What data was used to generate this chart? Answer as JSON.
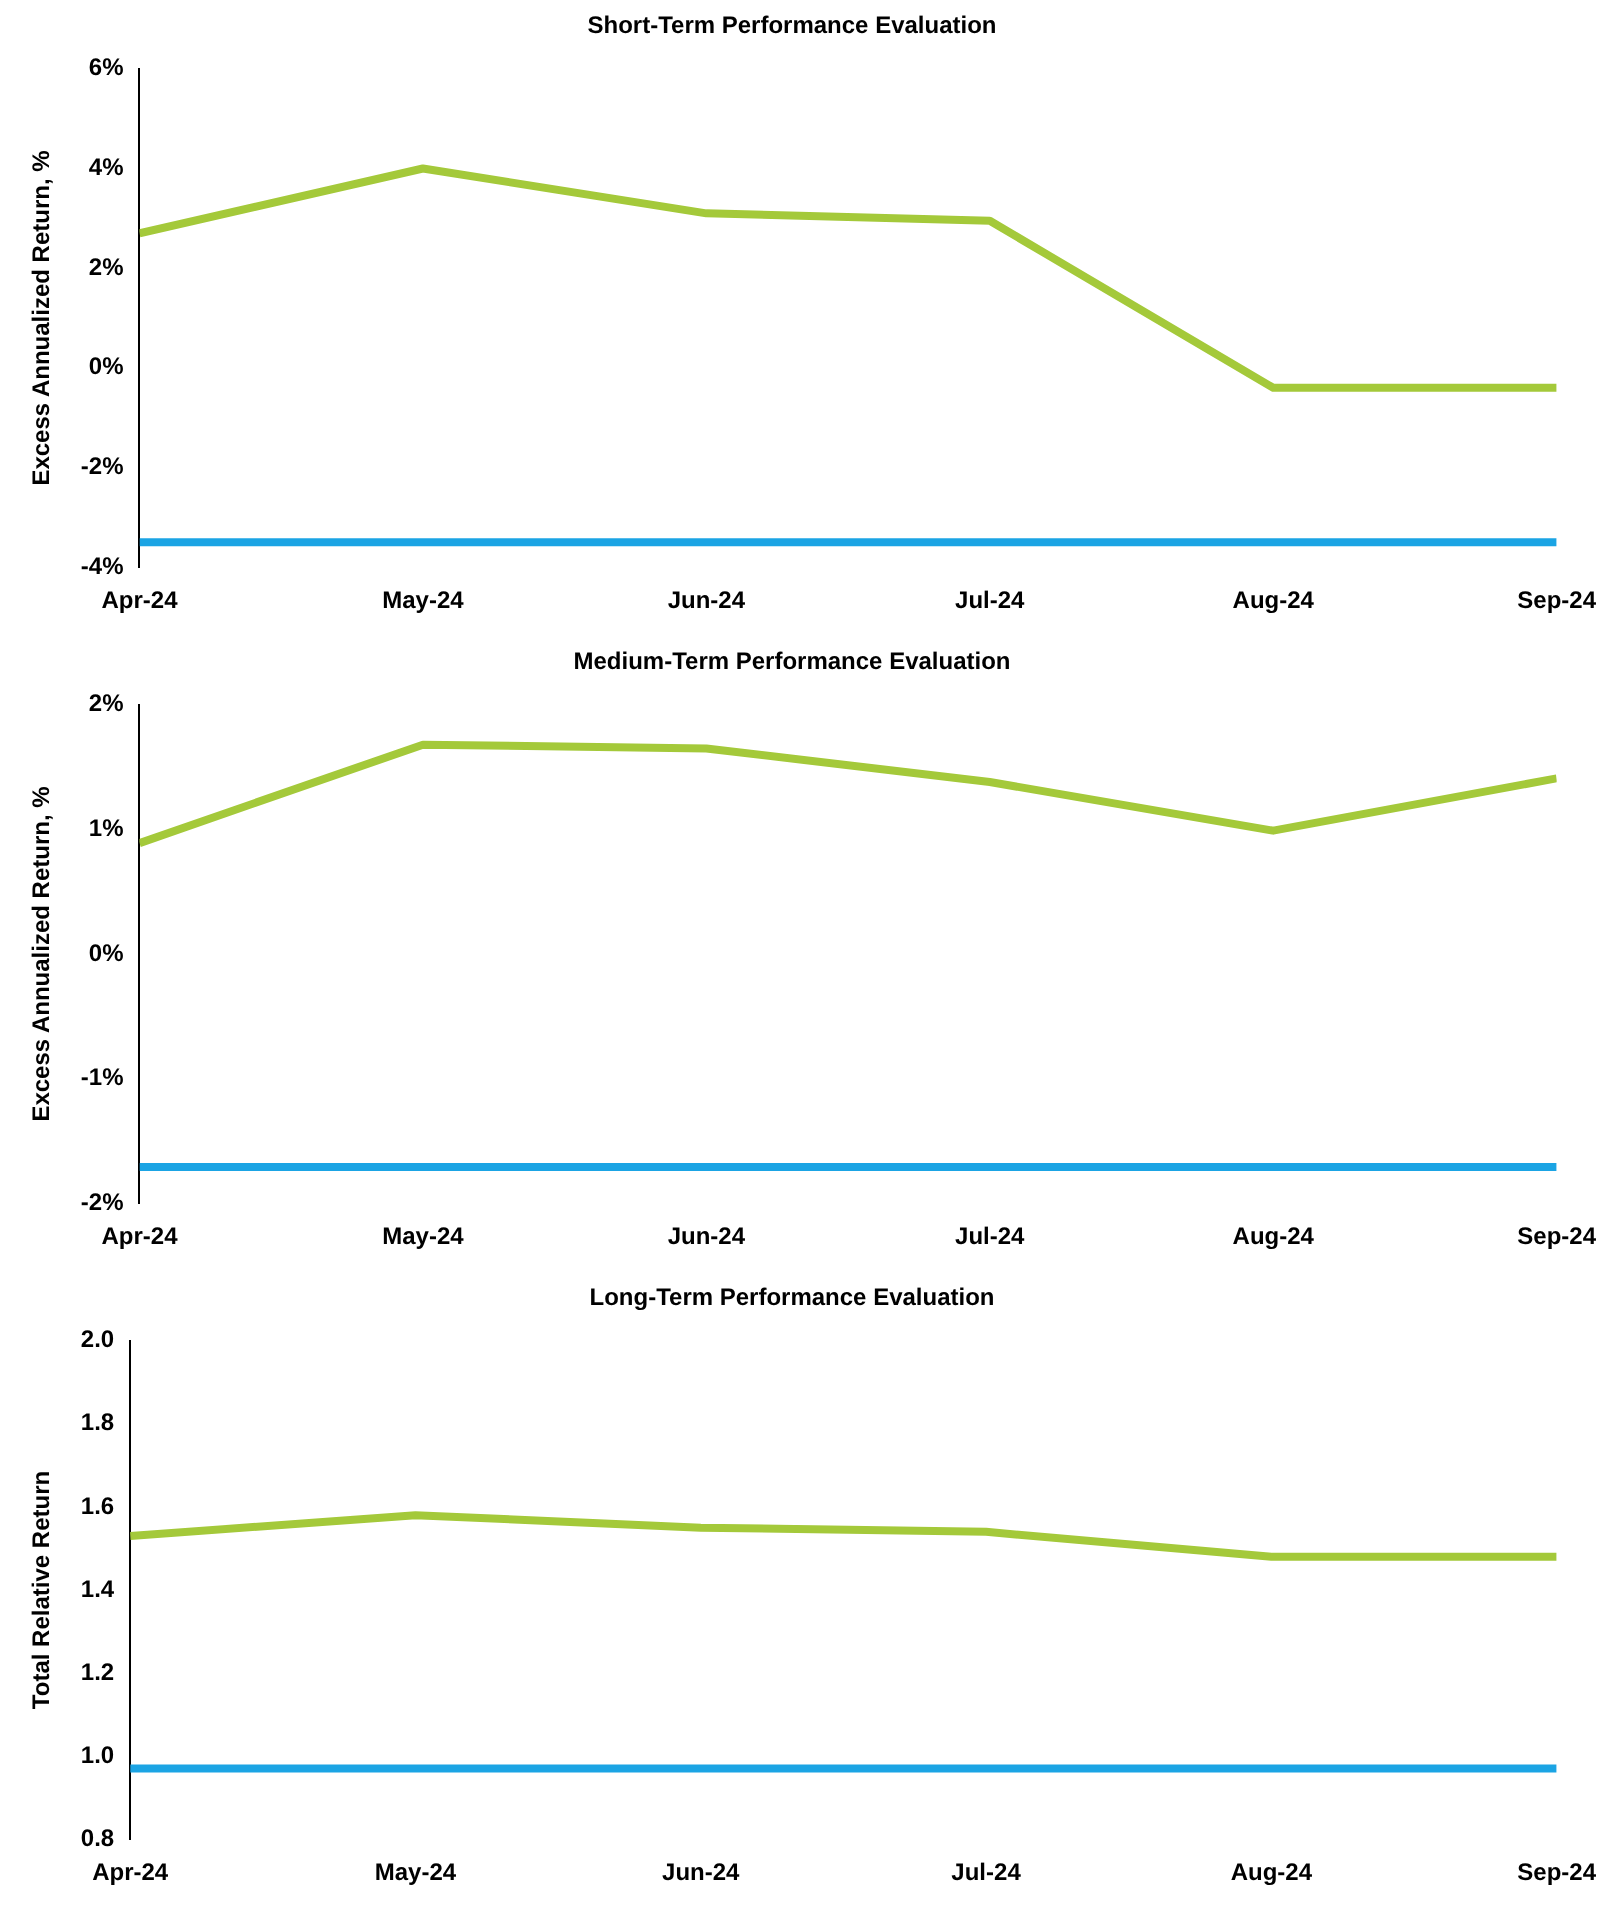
{
  "chart_data": [
    {
      "type": "line",
      "title": "Short-Term Performance Evaluation",
      "ylabel": "Excess Annualized Return, %",
      "categories": [
        "Apr-24",
        "May-24",
        "Jun-24",
        "Jul-24",
        "Aug-24",
        "Sep-24"
      ],
      "series": [
        {
          "color": "#a4c93a",
          "values": [
            2.7,
            4.0,
            3.1,
            2.95,
            -0.4,
            -0.4
          ]
        },
        {
          "color": "#1ba4e4",
          "values": [
            -3.5,
            -3.5,
            -3.5,
            -3.5,
            -3.5,
            -3.5
          ]
        }
      ],
      "ylim": [
        -4,
        6
      ],
      "yticks": [
        {
          "value": -4,
          "label": "-4%"
        },
        {
          "value": -2,
          "label": "-2%"
        },
        {
          "value": 0,
          "label": "0%"
        },
        {
          "value": 2,
          "label": "2%"
        },
        {
          "value": 4,
          "label": "4%"
        },
        {
          "value": 6,
          "label": "6%"
        }
      ],
      "grid": false,
      "legend": false,
      "marker": "none"
    },
    {
      "type": "line",
      "title": "Medium-Term Performance Evaluation",
      "ylabel": "Excess Annualized Return, %",
      "categories": [
        "Apr-24",
        "May-24",
        "Jun-24",
        "Jul-24",
        "Aug-24",
        "Sep-24"
      ],
      "series": [
        {
          "color": "#a4c93a",
          "values": [
            0.89,
            1.68,
            1.65,
            1.38,
            0.99,
            1.41
          ]
        },
        {
          "color": "#1ba4e4",
          "values": [
            -1.71,
            -1.71,
            -1.71,
            -1.71,
            -1.71,
            -1.71
          ]
        }
      ],
      "ylim": [
        -2,
        2
      ],
      "yticks": [
        {
          "value": -2,
          "label": "-2%"
        },
        {
          "value": -1,
          "label": "-1%"
        },
        {
          "value": 0,
          "label": "0%"
        },
        {
          "value": 1,
          "label": "1%"
        },
        {
          "value": 2,
          "label": "2%"
        }
      ],
      "grid": false,
      "legend": false,
      "marker": "none"
    },
    {
      "type": "line",
      "title": "Long-Term Performance Evaluation",
      "ylabel": "Total Relative Return",
      "categories": [
        "Apr-24",
        "May-24",
        "Jun-24",
        "Jul-24",
        "Aug-24",
        "Sep-24"
      ],
      "series": [
        {
          "color": "#a4c93a",
          "values": [
            1.53,
            1.58,
            1.55,
            1.54,
            1.48,
            1.48
          ]
        },
        {
          "color": "#1ba4e4",
          "values": [
            0.97,
            0.97,
            0.97,
            0.97,
            0.97,
            0.97
          ]
        }
      ],
      "ylim": [
        0.8,
        2.0
      ],
      "yticks": [
        {
          "value": 0.8,
          "label": "0.8"
        },
        {
          "value": 1.0,
          "label": "1.0"
        },
        {
          "value": 1.2,
          "label": "1.2"
        },
        {
          "value": 1.4,
          "label": "1.4"
        },
        {
          "value": 1.6,
          "label": "1.6"
        },
        {
          "value": 1.8,
          "label": "1.8"
        },
        {
          "value": 2.0,
          "label": "2.0"
        }
      ],
      "grid": false,
      "legend": false,
      "marker": "none"
    }
  ]
}
